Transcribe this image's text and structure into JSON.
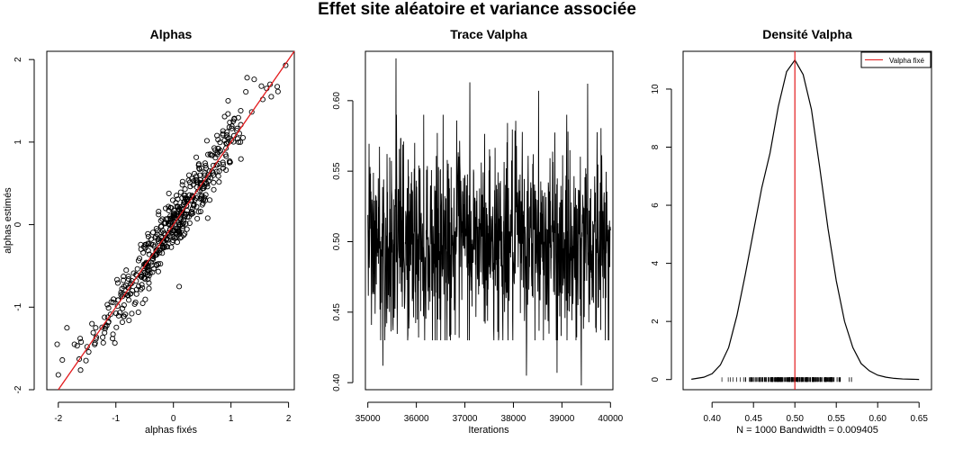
{
  "figure_title": "Effet site aléatoire et variance associée",
  "chart_data": [
    {
      "type": "scatter",
      "title": "Alphas",
      "xlabel": "alphas fixés",
      "ylabel": "alphas estimés",
      "xlim": [
        -2.2,
        2.1
      ],
      "ylim": [
        -2.0,
        2.1
      ],
      "x_ticks": [
        -2,
        -1,
        0,
        1,
        2
      ],
      "x_tick_labels": [
        "-2",
        "-1",
        "0",
        "1",
        "2"
      ],
      "y_ticks": [
        -2,
        -1,
        0,
        1,
        2
      ],
      "y_tick_labels": [
        "-2",
        "-1",
        "0",
        "1",
        "2"
      ],
      "reference_line": {
        "slope": 1,
        "intercept": 0,
        "color": "#e31a1c"
      },
      "point_count": 500,
      "points_summary": "open circles scattered around the identity line, estimated ≈ fixed ± ~0.2",
      "points_sample": [
        {
          "x": -2.02,
          "y": -1.45
        },
        {
          "x": -2.0,
          "y": -1.82
        },
        {
          "x": -1.93,
          "y": -1.64
        },
        {
          "x": -1.85,
          "y": -1.25
        },
        {
          "x": -1.72,
          "y": -1.45
        },
        {
          "x": -1.62,
          "y": -1.38
        },
        {
          "x": -1.5,
          "y": -1.48
        },
        {
          "x": -1.35,
          "y": -1.25
        },
        {
          "x": 1.62,
          "y": 1.65
        },
        {
          "x": 1.68,
          "y": 1.7
        },
        {
          "x": 1.7,
          "y": 1.55
        },
        {
          "x": 1.95,
          "y": 1.93
        },
        {
          "x": 1.28,
          "y": 1.78
        },
        {
          "x": 0.95,
          "y": 1.5
        },
        {
          "x": 0.1,
          "y": -0.75
        }
      ],
      "grid": false
    },
    {
      "type": "line",
      "title": "Trace Valpha",
      "xlabel": "Iterations",
      "ylabel": "",
      "xlim": [
        34950,
        40050
      ],
      "ylim": [
        0.395,
        0.635
      ],
      "x_ticks": [
        35000,
        36000,
        37000,
        38000,
        39000,
        40000
      ],
      "x_tick_labels": [
        "35000",
        "36000",
        "37000",
        "38000",
        "39000",
        "40000"
      ],
      "y_ticks": [
        0.4,
        0.45,
        0.5,
        0.55,
        0.6
      ],
      "y_tick_labels": [
        "0.40",
        "0.45",
        "0.50",
        "0.55",
        "0.60"
      ],
      "series_summary": {
        "iterations_start": 35000,
        "iterations_end": 40000,
        "samples": 1000,
        "center": 0.5,
        "sd": 0.035,
        "max": 0.63,
        "min": 0.398
      },
      "extremes": [
        {
          "x": 35580,
          "y": 0.63
        },
        {
          "x": 37100,
          "y": 0.613
        },
        {
          "x": 39530,
          "y": 0.612
        },
        {
          "x": 38520,
          "y": 0.607
        },
        {
          "x": 39400,
          "y": 0.398
        },
        {
          "x": 35310,
          "y": 0.412
        },
        {
          "x": 38900,
          "y": 0.407
        },
        {
          "x": 38270,
          "y": 0.405
        }
      ],
      "line_color": "#000000",
      "grid": false
    },
    {
      "type": "line",
      "title": "Densité Valpha",
      "xlabel": "N = 1000   Bandwidth = 0.009405",
      "ylabel": "",
      "xlim": [
        0.365,
        0.665
      ],
      "ylim": [
        -0.35,
        11.3
      ],
      "x_ticks": [
        0.4,
        0.45,
        0.5,
        0.55,
        0.6,
        0.65
      ],
      "x_tick_labels": [
        "0.40",
        "0.45",
        "0.50",
        "0.55",
        "0.60",
        "0.65"
      ],
      "y_ticks": [
        0,
        2,
        4,
        6,
        8,
        10
      ],
      "y_tick_labels": [
        "0",
        "2",
        "4",
        "6",
        "8",
        "10"
      ],
      "density_curve": {
        "x": [
          0.375,
          0.39,
          0.4,
          0.41,
          0.42,
          0.43,
          0.44,
          0.45,
          0.46,
          0.47,
          0.48,
          0.49,
          0.5,
          0.51,
          0.52,
          0.53,
          0.54,
          0.55,
          0.56,
          0.57,
          0.58,
          0.59,
          0.6,
          0.61,
          0.62,
          0.63,
          0.65
        ],
        "y": [
          0.01,
          0.08,
          0.2,
          0.5,
          1.1,
          2.2,
          3.6,
          5.1,
          6.6,
          7.8,
          9.4,
          10.6,
          11.0,
          10.5,
          9.3,
          7.3,
          5.2,
          3.4,
          2.0,
          1.1,
          0.55,
          0.3,
          0.15,
          0.08,
          0.04,
          0.02,
          0.003
        ]
      },
      "rug_range": [
        0.4,
        0.63
      ],
      "reference_value": 0.5,
      "reference_color": "#e31a1c",
      "legend": {
        "entries": [
          "Valpha fixé"
        ],
        "placement": "top-right"
      },
      "grid": false
    }
  ]
}
